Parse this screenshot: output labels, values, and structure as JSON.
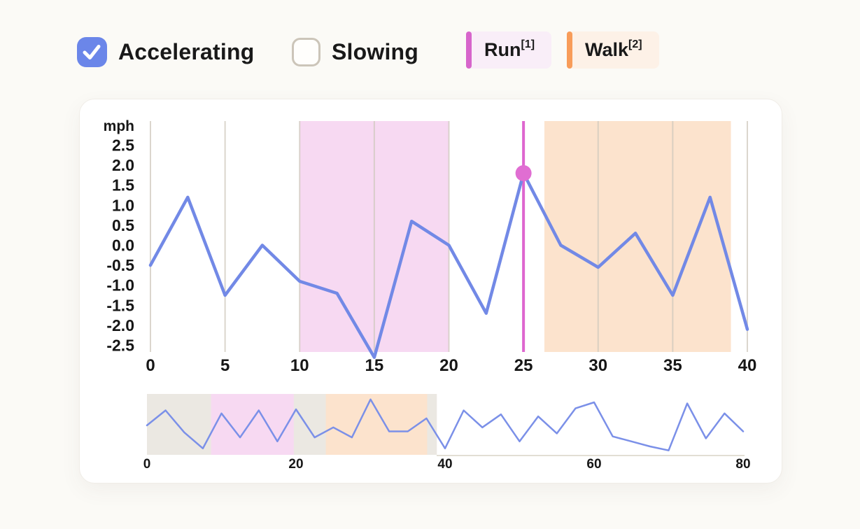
{
  "page": {
    "background": "#fbfaf6",
    "text_color": "#191919"
  },
  "controls": {
    "accelerating": {
      "label": "Accelerating",
      "checked": true,
      "checkbox_color": "#6b86e9"
    },
    "slowing": {
      "label": "Slowing",
      "checked": false,
      "border_color": "#ccc5b9"
    },
    "legend": [
      {
        "label": "Run",
        "sup": "[1]",
        "bar_color": "#d765cb",
        "bg_color": "#f9eef8"
      },
      {
        "label": "Walk",
        "sup": "[2]",
        "bar_color": "#f89c59",
        "bg_color": "#fdf1e7"
      }
    ]
  },
  "chart_data": [
    {
      "id": "speed-main",
      "type": "line",
      "title": "",
      "ylabel_unit": "mph",
      "x": [
        0,
        2.5,
        5,
        7.5,
        10,
        12.5,
        15,
        17.5,
        20,
        22.5,
        25,
        27.5,
        30,
        32.5,
        35,
        37.5,
        40
      ],
      "values": [
        -0.5,
        1.2,
        -1.25,
        0.0,
        -0.9,
        -1.2,
        -2.8,
        0.6,
        0.0,
        -1.7,
        1.8,
        0.0,
        -0.55,
        0.3,
        -1.25,
        1.2,
        -2.1
      ],
      "xticks": [
        0,
        5,
        10,
        15,
        20,
        25,
        30,
        35,
        40
      ],
      "ytick_labels": [
        "2.5",
        "2.0",
        "1.5",
        "1.0",
        "0.5",
        "0.0",
        "-0.5",
        "-1.0",
        "-1.5",
        "-2.0",
        "-2.5"
      ],
      "xlim": [
        0,
        40
      ],
      "ylim": [
        -2.67,
        3.1
      ],
      "grid": "vertical-only",
      "legend_position": "none",
      "line_color": "#7289e6",
      "grid_color": "#cfc9bd",
      "regions": [
        {
          "name": "run",
          "from": 10,
          "to": 20,
          "color": "#f7d9f2"
        },
        {
          "name": "walk",
          "from": 26.4,
          "to": 38.9,
          "color": "#fce3cd"
        }
      ],
      "cursor": {
        "x": 25,
        "value": 1.8,
        "line_color": "#de66cf",
        "dot_color": "#e06ed2"
      }
    },
    {
      "id": "speed-overview",
      "type": "line",
      "title": "",
      "x": [
        0,
        2.5,
        5,
        7.5,
        10,
        12.5,
        15,
        17.5,
        20,
        22.5,
        25,
        27.5,
        30,
        32.5,
        35,
        37.5,
        40,
        42.5,
        45,
        47.5,
        50,
        52.5,
        55,
        57.5,
        60,
        62.5,
        65,
        67.5,
        70,
        72.5,
        75,
        77.5,
        80
      ],
      "values": [
        -0.1,
        1.4,
        -0.8,
        -2.4,
        1.1,
        -1.3,
        1.4,
        -1.7,
        1.5,
        -1.3,
        -0.3,
        -1.3,
        2.5,
        -0.7,
        -0.7,
        0.6,
        -2.4,
        1.4,
        -0.3,
        1.0,
        -1.7,
        0.8,
        -0.9,
        1.6,
        2.2,
        -1.2,
        -1.7,
        -2.2,
        -2.6,
        2.1,
        -1.4,
        1.1,
        -0.7
      ],
      "xticks": [
        0,
        20,
        40,
        60,
        80
      ],
      "xlim": [
        0,
        80
      ],
      "ylim": [
        -3.04,
        3.04
      ],
      "grid": "off",
      "line_color": "#7b90e8",
      "axis_color": "#e2ded4",
      "regions": [
        {
          "name": "selection",
          "from": 0,
          "to": 38.9,
          "color": "#ebe8e2"
        },
        {
          "name": "run",
          "from": 8.6,
          "to": 19.7,
          "color": "#f7d9f2"
        },
        {
          "name": "walk",
          "from": 24,
          "to": 37.6,
          "color": "#fce3cd"
        }
      ]
    }
  ]
}
